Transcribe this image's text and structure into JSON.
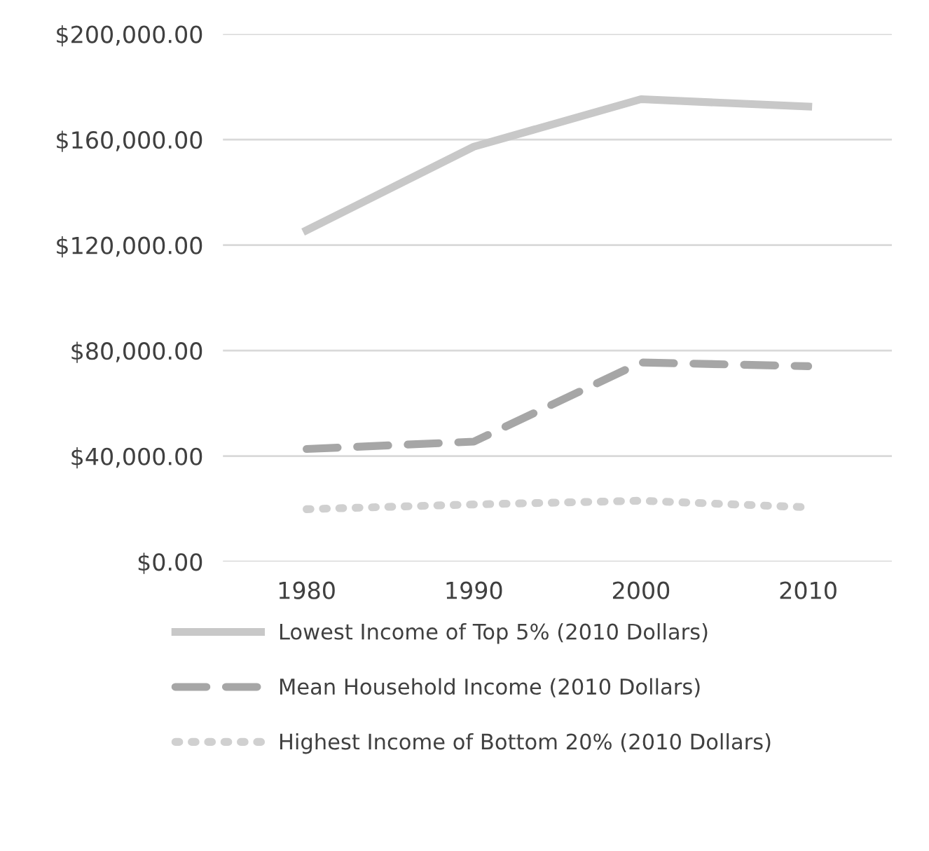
{
  "chart_data": {
    "type": "line",
    "categories": [
      "1980",
      "1990",
      "2000",
      "2010"
    ],
    "series": [
      {
        "name": "Lowest Income of Top 5% (2010 Dollars)",
        "color": "#c8c8c8",
        "line_style": "solid",
        "values": [
          125600,
          157300,
          175300,
          172500
        ]
      },
      {
        "name": "Mean Household Income (2010 Dollars)",
        "color": "#a6a6a6",
        "line_style": "dashed",
        "values": [
          42700,
          45500,
          75500,
          74100
        ]
      },
      {
        "name": "Highest Income of Bottom 20% (2010 Dollars)",
        "color": "#d0d0d0",
        "line_style": "dotted",
        "values": [
          19900,
          21700,
          23100,
          20600
        ]
      }
    ],
    "ylim": [
      0,
      200000
    ],
    "yticks": [
      {
        "value": 0,
        "label": "$0.00"
      },
      {
        "value": 40000,
        "label": "$40,000.00"
      },
      {
        "value": 80000,
        "label": "$80,000.00"
      },
      {
        "value": 120000,
        "label": "$120,000.00"
      },
      {
        "value": 160000,
        "label": "$160,000.00"
      },
      {
        "value": 200000,
        "label": "$200,000.00"
      }
    ],
    "grid": "y",
    "legend": "bottom",
    "marker": "none"
  }
}
